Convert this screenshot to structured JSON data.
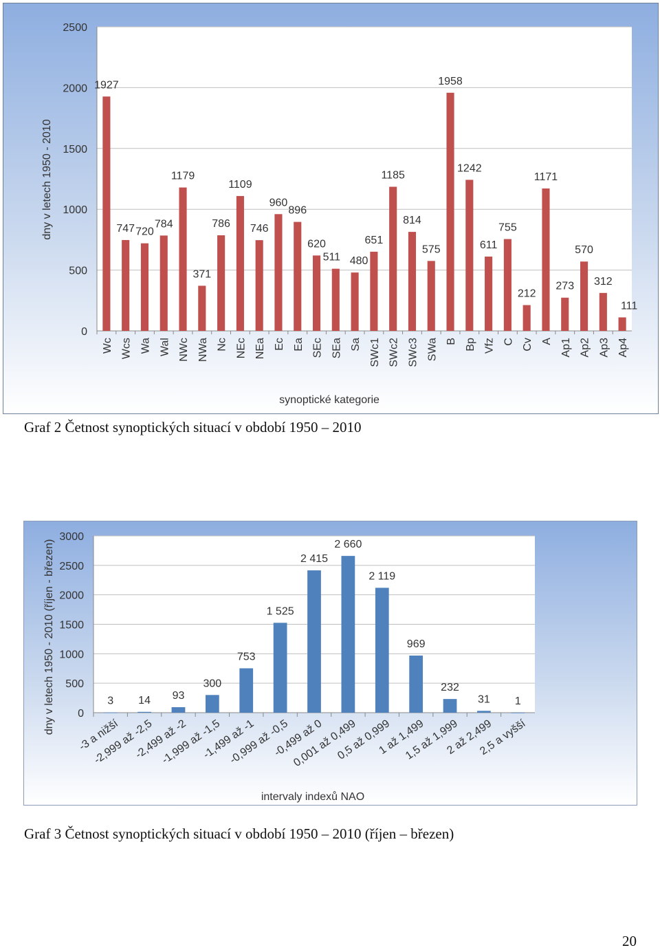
{
  "chart_data": [
    {
      "type": "bar",
      "title": "",
      "xlabel": "synoptické kategorie",
      "ylabel": "dny v letech 1950 - 2010",
      "ylim": [
        0,
        2500
      ],
      "yticks": [
        0,
        500,
        1000,
        1500,
        2000,
        2500
      ],
      "grid": true,
      "categories": [
        "Wc",
        "Wcs",
        "Wa",
        "Wal",
        "NWc",
        "NWa",
        "Nc",
        "NEc",
        "NEa",
        "Ec",
        "Ea",
        "SEc",
        "SEa",
        "Sa",
        "SWc1",
        "SWc2",
        "SWc3",
        "SWa",
        "B",
        "Bp",
        "Vfz",
        "C",
        "Cv",
        "A",
        "Ap1",
        "Ap2",
        "Ap3",
        "Ap4"
      ],
      "values": [
        1927,
        747,
        720,
        784,
        1179,
        371,
        786,
        1109,
        746,
        960,
        896,
        620,
        511,
        480,
        651,
        1185,
        814,
        575,
        1958,
        1242,
        611,
        755,
        212,
        1171,
        273,
        570,
        312,
        111
      ],
      "value_labels": [
        "1927",
        "747",
        "720",
        "784",
        "1179",
        "371",
        "786",
        "1109",
        "746",
        "960",
        "896",
        "620",
        "511",
        "480",
        "651",
        "1185",
        "814",
        "575",
        "1958",
        "1242",
        "611",
        "755",
        "212",
        "1171",
        "273",
        "570",
        "312",
        "111"
      ],
      "bar_color": "#c0504d"
    },
    {
      "type": "bar",
      "title": "",
      "xlabel": "intervaly indexů NAO",
      "ylabel": "dny v letech 1950 - 2010 (říjen - březen)",
      "ylim": [
        0,
        3000
      ],
      "yticks": [
        0,
        500,
        1000,
        1500,
        2000,
        2500,
        3000
      ],
      "grid": true,
      "categories": [
        "-3 a nižší",
        "-2,999 až -2,5",
        "-2,499 až -2",
        "-1,999 až -1,5",
        "-1,499 až -1",
        "-0,999 až -0,5",
        "-0,499 až 0",
        "0,001 až 0,499",
        "0,5 až 0,999",
        "1 až 1,499",
        "1,5 až 1,999",
        "2 až 2,499",
        "2,5 a vyšší"
      ],
      "values": [
        3,
        14,
        93,
        300,
        753,
        1525,
        2415,
        2660,
        2119,
        969,
        232,
        31,
        1
      ],
      "value_labels": [
        "3",
        "14",
        "93",
        "300",
        "753",
        "1 525",
        "2 415",
        "2 660",
        "2 119",
        "969",
        "232",
        "31",
        "1"
      ],
      "bar_color": "#4f81bd"
    }
  ],
  "captions": {
    "graph2": "Graf 2 Četnost synoptických situací v období 1950 – 2010",
    "graph3": "Graf 3 Četnost synoptických situací v období 1950 – 2010 (říjen – březen)"
  },
  "page_number": "20"
}
